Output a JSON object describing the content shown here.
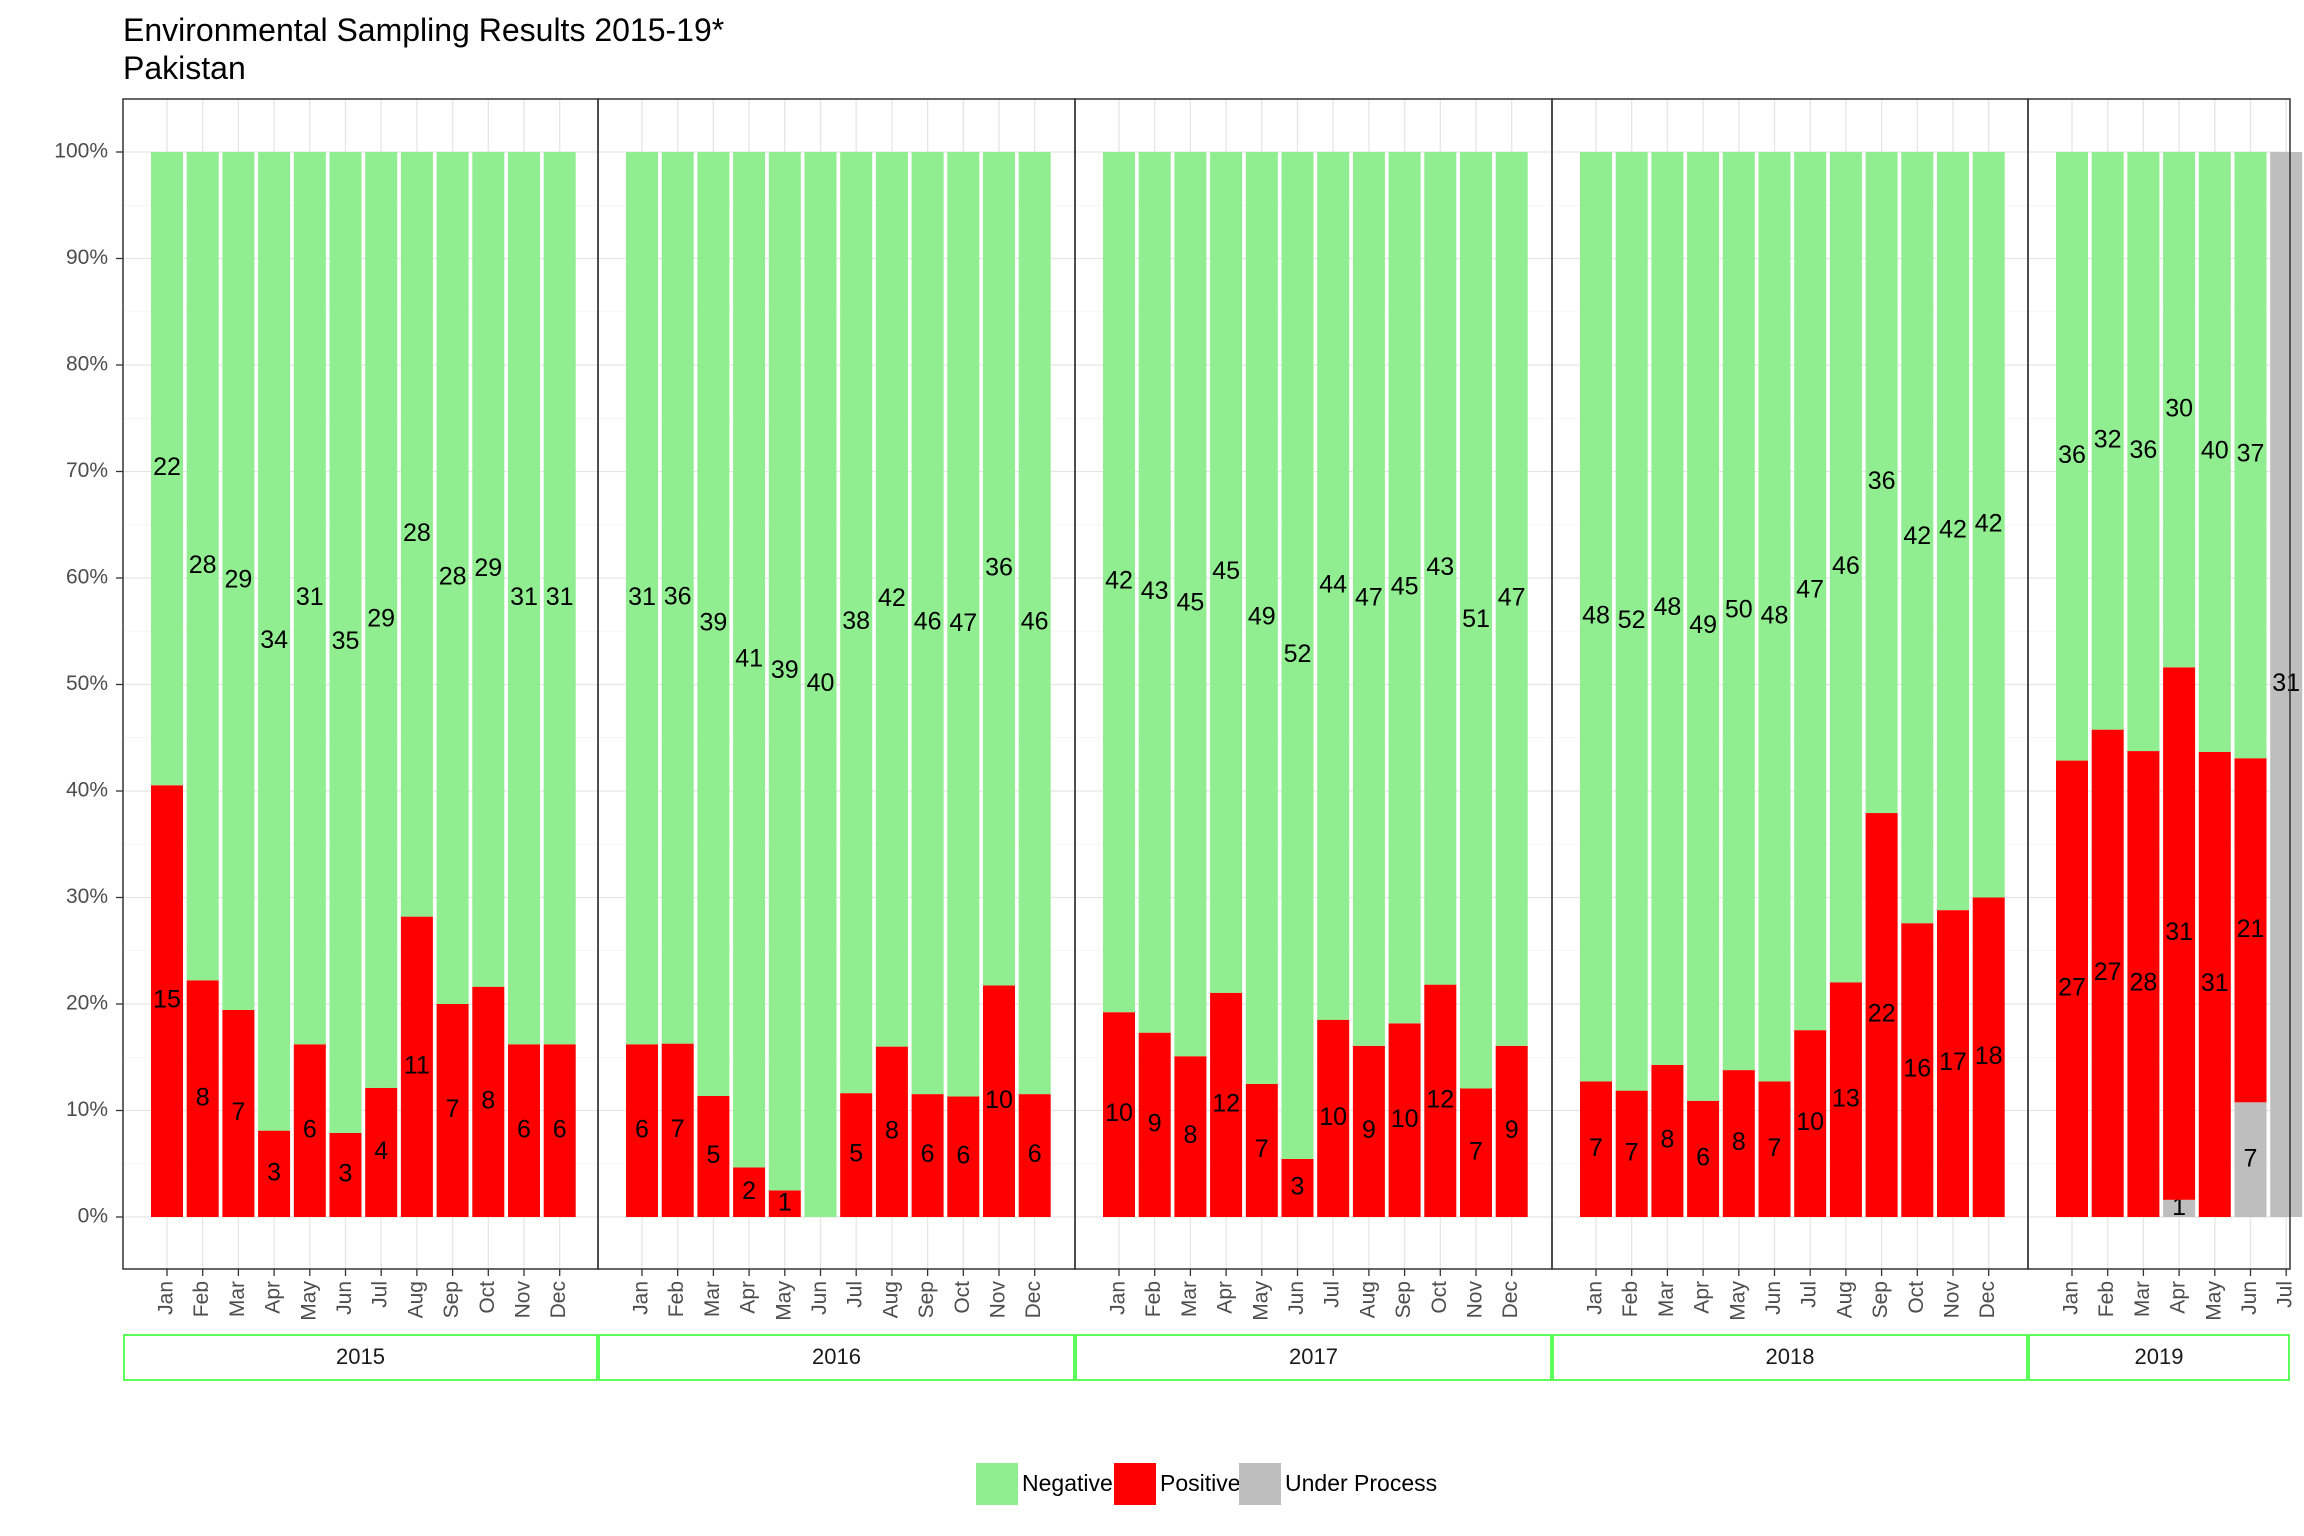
{
  "chart_data": {
    "type": "bar",
    "stacked": "percent",
    "title": "Environmental Sampling Results 2015-19*",
    "subtitle": "Pakistan",
    "xlabel": "",
    "ylabel": "",
    "ylim": [
      0,
      100
    ],
    "y_ticks": [
      "0%",
      "10%",
      "20%",
      "30%",
      "40%",
      "50%",
      "60%",
      "70%",
      "80%",
      "90%",
      "100%"
    ],
    "grid": true,
    "legend_position": "bottom",
    "colors": {
      "Negative": "#90EE90",
      "Positive": "#FF0000",
      "Under Process": "#BEBEBE"
    },
    "series_names": [
      "Negative",
      "Positive",
      "Under Process"
    ],
    "facets": [
      {
        "label": "2015",
        "months": [
          "Jan",
          "Feb",
          "Mar",
          "Apr",
          "May",
          "Jun",
          "Jul",
          "Aug",
          "Sep",
          "Oct",
          "Nov",
          "Dec"
        ],
        "negative": [
          22,
          28,
          29,
          34,
          31,
          35,
          29,
          28,
          28,
          29,
          31,
          31
        ],
        "positive": [
          15,
          8,
          7,
          3,
          6,
          3,
          4,
          11,
          7,
          8,
          6,
          6
        ],
        "under_process": [
          0,
          0,
          0,
          0,
          0,
          0,
          0,
          0,
          0,
          0,
          0,
          0
        ]
      },
      {
        "label": "2016",
        "months": [
          "Jan",
          "Feb",
          "Mar",
          "Apr",
          "May",
          "Jun",
          "Jul",
          "Aug",
          "Sep",
          "Oct",
          "Nov",
          "Dec"
        ],
        "negative": [
          31,
          36,
          39,
          41,
          39,
          40,
          38,
          42,
          46,
          47,
          36,
          46
        ],
        "positive": [
          6,
          7,
          5,
          2,
          1,
          0,
          5,
          8,
          6,
          6,
          10,
          6
        ],
        "under_process": [
          0,
          0,
          0,
          0,
          0,
          0,
          0,
          0,
          0,
          0,
          0,
          0
        ]
      },
      {
        "label": "2017",
        "months": [
          "Jan",
          "Feb",
          "Mar",
          "Apr",
          "May",
          "Jun",
          "Jul",
          "Aug",
          "Sep",
          "Oct",
          "Nov",
          "Dec"
        ],
        "negative": [
          42,
          43,
          45,
          45,
          49,
          52,
          44,
          47,
          45,
          43,
          51,
          47
        ],
        "positive": [
          10,
          9,
          8,
          12,
          7,
          3,
          10,
          9,
          10,
          12,
          7,
          9
        ],
        "under_process": [
          0,
          0,
          0,
          0,
          0,
          0,
          0,
          0,
          0,
          0,
          0,
          0
        ]
      },
      {
        "label": "2018",
        "months": [
          "Jan",
          "Feb",
          "Mar",
          "Apr",
          "May",
          "Jun",
          "Jul",
          "Aug",
          "Sep",
          "Oct",
          "Nov",
          "Dec"
        ],
        "negative": [
          48,
          52,
          48,
          49,
          50,
          48,
          47,
          46,
          36,
          42,
          42,
          42
        ],
        "positive": [
          7,
          7,
          8,
          6,
          8,
          7,
          10,
          13,
          22,
          16,
          17,
          18
        ],
        "under_process": [
          0,
          0,
          0,
          0,
          0,
          0,
          0,
          0,
          0,
          0,
          0,
          0
        ]
      },
      {
        "label": "2019",
        "months": [
          "Jan",
          "Feb",
          "Mar",
          "Apr",
          "May",
          "Jun",
          "Jul"
        ],
        "negative": [
          36,
          32,
          36,
          30,
          40,
          37,
          0
        ],
        "positive": [
          27,
          27,
          28,
          31,
          31,
          21,
          0
        ],
        "under_process": [
          0,
          0,
          0,
          1,
          0,
          7,
          31
        ]
      }
    ]
  }
}
